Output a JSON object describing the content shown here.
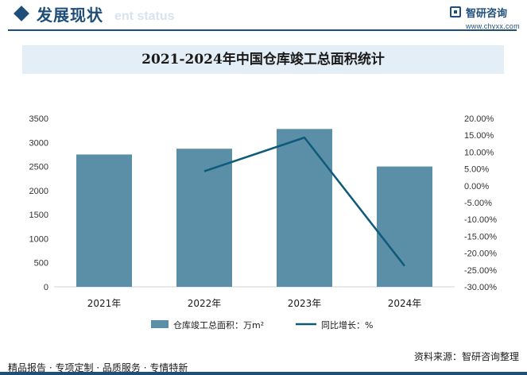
{
  "header": {
    "title": "发展现状",
    "subtitle_en": "ent status"
  },
  "logo": {
    "name": "智研咨询",
    "url": "www.chyxx.com"
  },
  "footer": {
    "left": "精品报告 · 专项定制 · 品质服务 · 专情特新",
    "source": "资料来源：智研咨询整理"
  },
  "colors": {
    "bar": "#5b8fa8",
    "line": "#0e5a78",
    "brand": "#1f4e79"
  },
  "chart_data": {
    "type": "bar",
    "title": "2021-2024年中国仓库竣工总面积统计",
    "categories": [
      "2021年",
      "2022年",
      "2023年",
      "2024年"
    ],
    "series": [
      {
        "name": "仓库竣工总面积：万m²",
        "type": "bar",
        "axis": "left",
        "values": [
          2750,
          2870,
          3280,
          2500
        ]
      },
      {
        "name": "同比增长：%",
        "type": "line",
        "axis": "right",
        "values": [
          null,
          4.3,
          14.3,
          -23.8
        ]
      }
    ],
    "y_left": {
      "min": 0,
      "max": 3500,
      "ticks": [
        "0",
        "500",
        "1000",
        "1500",
        "2000",
        "2500",
        "3000",
        "3500"
      ]
    },
    "y_right": {
      "min": -30,
      "max": 20,
      "ticks": [
        "-30.00%",
        "-25.00%",
        "-20.00%",
        "-15.00%",
        "-10.00%",
        "-5.00%",
        "0.00%",
        "5.00%",
        "10.00%",
        "15.00%",
        "20.00%"
      ]
    },
    "legend": "bottom"
  }
}
